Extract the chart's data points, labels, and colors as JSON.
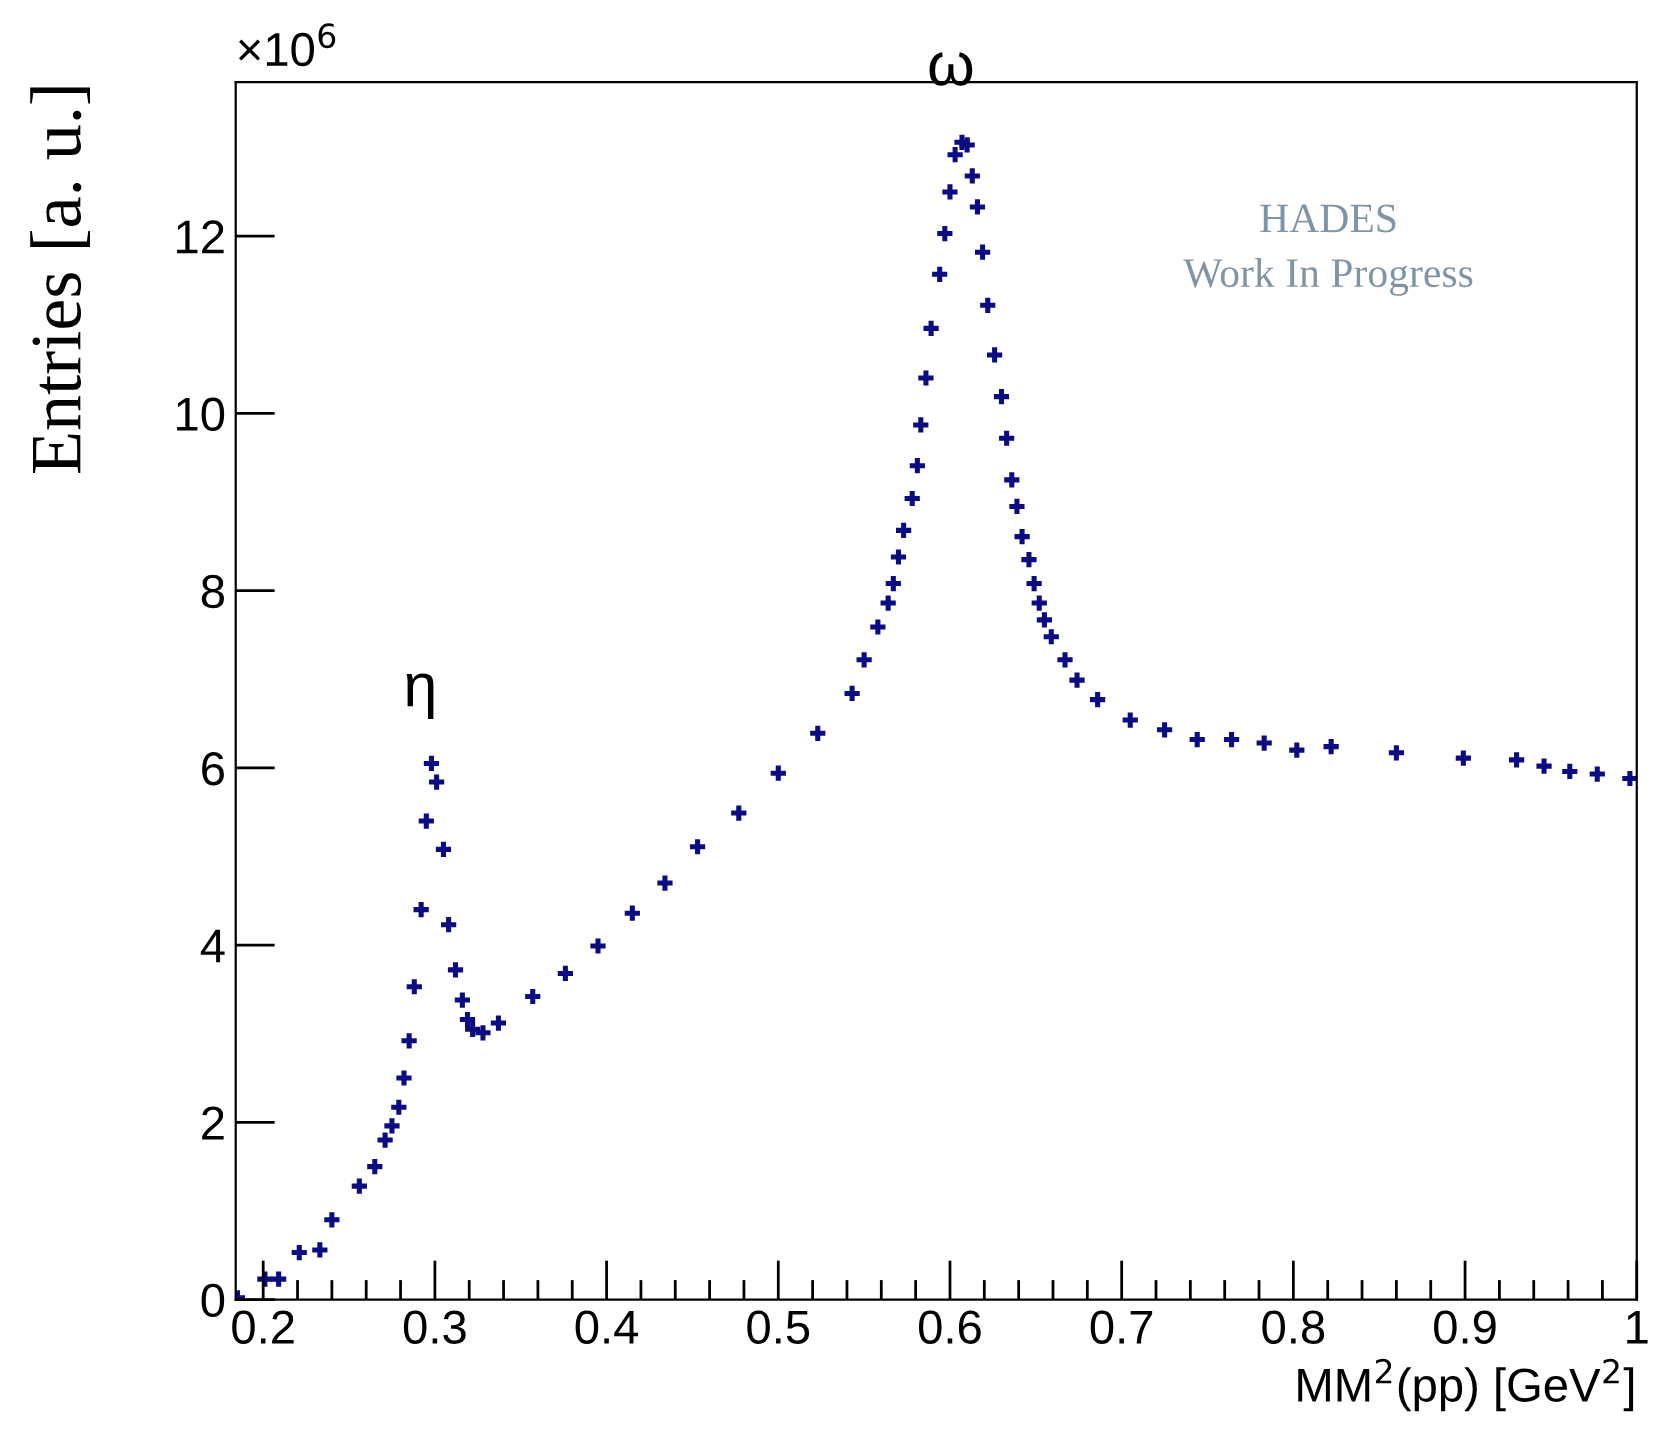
{
  "chart_data": {
    "type": "scatter",
    "xlabel": "MM$^{2}$(pp) [GeV$^{2}$]",
    "ylabel": "Entries [a. u.]",
    "marker": "cross",
    "grid": false,
    "legend": false,
    "xlim": [
      0.184,
      1
    ],
    "ylim": [
      0,
      13.74
    ],
    "xticks": [
      0.2,
      0.3,
      0.4,
      0.5,
      0.6,
      0.7,
      0.8,
      0.9,
      {
        "value": 1,
        "label": "1"
      }
    ],
    "yticks": [
      0,
      2,
      4,
      6,
      8,
      10,
      12
    ],
    "annotations": [
      "×10$^{6}$",
      "HADES",
      "Work In Progress",
      {
        "text": "η",
        "x": 0.298,
        "y": 6.05
      },
      {
        "text": "ω",
        "x": 0.607,
        "y": 13.06
      }
    ],
    "series": [
      {
        "color": "#0b0b82",
        "x": [
          0.185,
          0.201,
          0.209,
          0.221,
          0.233,
          0.24,
          0.256,
          0.265,
          0.271,
          0.275,
          0.279,
          0.282,
          0.285,
          0.288,
          0.292,
          0.295,
          0.298,
          0.301,
          0.305,
          0.308,
          0.312,
          0.316,
          0.319,
          0.322,
          0.328,
          0.337,
          0.357,
          0.376,
          0.395,
          0.415,
          0.434,
          0.453,
          0.477,
          0.5,
          0.523,
          0.543,
          0.55,
          0.558,
          0.564,
          0.567,
          0.57,
          0.573,
          0.578,
          0.581,
          0.583,
          0.586,
          0.589,
          0.594,
          0.597,
          0.6,
          0.603,
          0.607,
          0.61,
          0.613,
          0.616,
          0.619,
          0.622,
          0.626,
          0.63,
          0.633,
          0.636,
          0.639,
          0.642,
          0.646,
          0.649,
          0.652,
          0.655,
          0.659,
          0.667,
          0.674,
          0.686,
          0.705,
          0.725,
          0.744,
          0.764,
          0.783,
          0.802,
          0.822,
          0.86,
          0.899,
          0.93,
          0.946,
          0.961,
          0.977,
          0.996
        ],
        "values": [
          0.02,
          0.23,
          0.23,
          0.53,
          0.56,
          0.9,
          1.28,
          1.5,
          1.8,
          1.96,
          2.17,
          2.5,
          2.92,
          3.53,
          4.4,
          5.4,
          6.05,
          5.84,
          5.08,
          4.23,
          3.72,
          3.38,
          3.16,
          3.05,
          3.01,
          3.12,
          3.42,
          3.68,
          3.99,
          4.36,
          4.7,
          5.11,
          5.49,
          5.94,
          6.39,
          6.84,
          7.22,
          7.59,
          7.86,
          8.08,
          8.38,
          8.68,
          9.04,
          9.41,
          9.87,
          10.4,
          10.96,
          11.57,
          12.03,
          12.5,
          12.92,
          13.06,
          13.03,
          12.68,
          12.33,
          11.82,
          11.22,
          10.66,
          10.19,
          9.72,
          9.25,
          8.95,
          8.61,
          8.35,
          8.08,
          7.86,
          7.67,
          7.48,
          7.22,
          6.99,
          6.77,
          6.54,
          6.43,
          6.32,
          6.32,
          6.28,
          6.2,
          6.24,
          6.17,
          6.11,
          6.09,
          6.02,
          5.96,
          5.93,
          5.88
        ]
      }
    ]
  }
}
